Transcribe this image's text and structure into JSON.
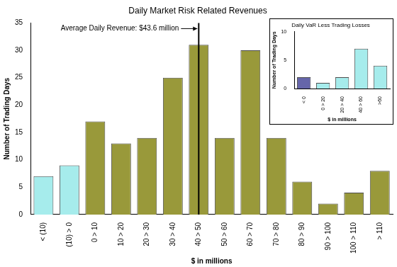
{
  "chart_data": [
    {
      "type": "bar",
      "title": "Daily Market Risk Related Revenues",
      "x_label": "$ in millions",
      "y_label": "Number of Trading Days",
      "categories": [
        "< (10)",
        "(10) > 0",
        "0 > 10",
        "10 > 20",
        "20 > 30",
        "30 > 40",
        "40 > 50",
        "50 > 60",
        "60 > 70",
        "70 > 80",
        "80 > 90",
        "90 > 100",
        "100 > 110",
        "> 110"
      ],
      "values": [
        7,
        9,
        17,
        13,
        14,
        25,
        31,
        14,
        30,
        14,
        6,
        2,
        4,
        8
      ],
      "colors": [
        "#a6ecec",
        "#a6ecec",
        "#99993a",
        "#99993a",
        "#99993a",
        "#99993a",
        "#99993a",
        "#99993a",
        "#99993a",
        "#99993a",
        "#99993a",
        "#99993a",
        "#99993a",
        "#99993a"
      ],
      "ylim": [
        0,
        35
      ],
      "yticks": [
        0,
        5,
        10,
        15,
        20,
        25,
        30,
        35
      ],
      "grid": false,
      "annotations": [
        {
          "text": "Average Daily Revenue: $43.6 million",
          "x": "40 > 50"
        }
      ]
    },
    {
      "type": "bar",
      "title": "Daily VaR Less Trading Losses",
      "x_label": "$ in millions",
      "y_label": "Number of Trading Days",
      "categories": [
        "< 0",
        "0 > 20",
        "20 > 40",
        "40 > 60",
        ">60"
      ],
      "values": [
        2,
        1,
        2,
        7,
        4
      ],
      "colors": [
        "#6666aa",
        "#a6ecec",
        "#a6ecec",
        "#a6ecec",
        "#a6ecec"
      ],
      "ylim": [
        0,
        10
      ],
      "yticks": [
        0,
        5,
        10
      ],
      "grid": false
    }
  ]
}
